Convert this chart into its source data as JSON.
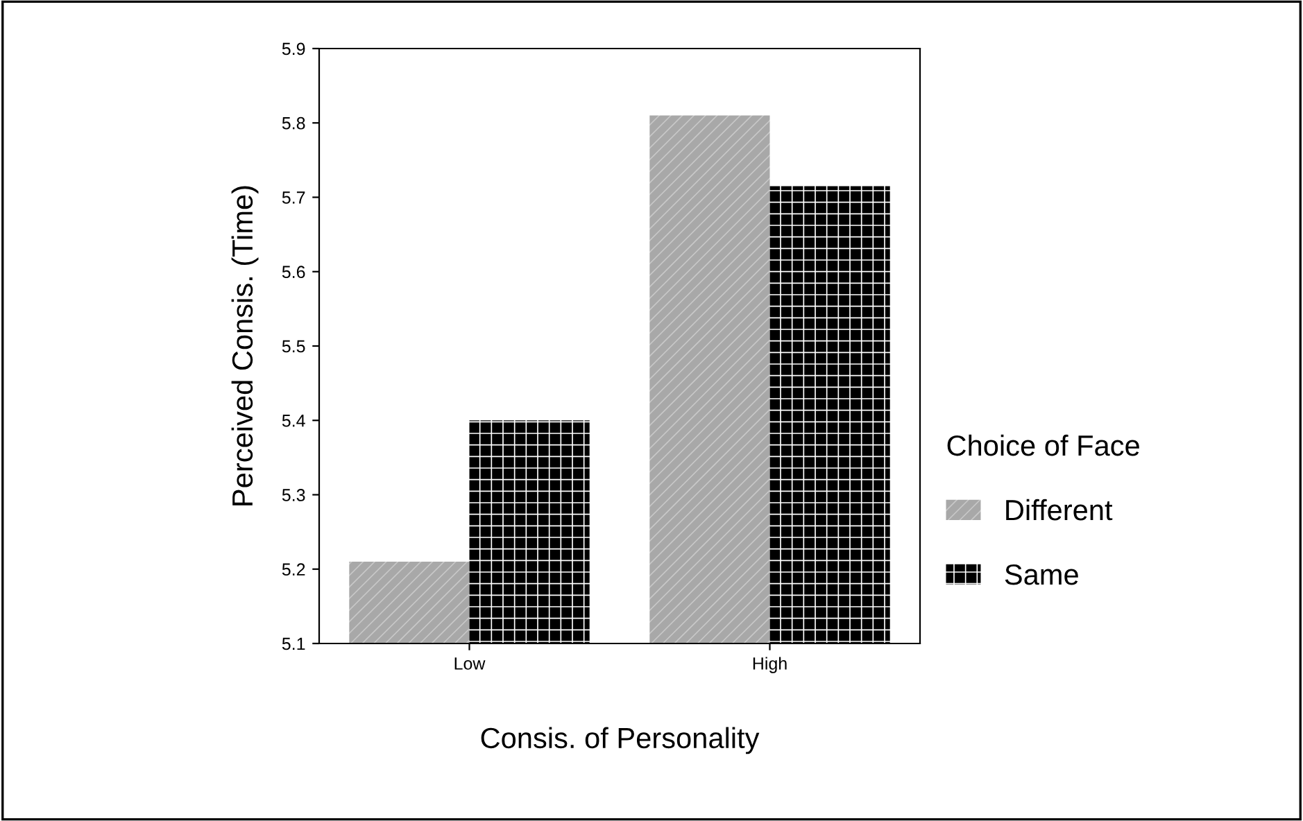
{
  "chart_data": {
    "type": "bar",
    "xlabel": "Consis. of Personality",
    "ylabel": "Perceived Consis. (Time)",
    "legend_title": "Choice of Face",
    "categories": [
      "Low",
      "High"
    ],
    "series": [
      {
        "name": "Different",
        "color": "#a8a8a8",
        "values": [
          5.21,
          5.81
        ]
      },
      {
        "name": "Same",
        "color": "#000000",
        "values": [
          5.4,
          5.715
        ]
      }
    ],
    "ylim": [
      5.1,
      5.9
    ],
    "yticks": [
      5.1,
      5.2,
      5.3,
      5.4,
      5.5,
      5.6,
      5.7,
      5.8,
      5.9
    ],
    "grid": false,
    "legend": "right"
  }
}
